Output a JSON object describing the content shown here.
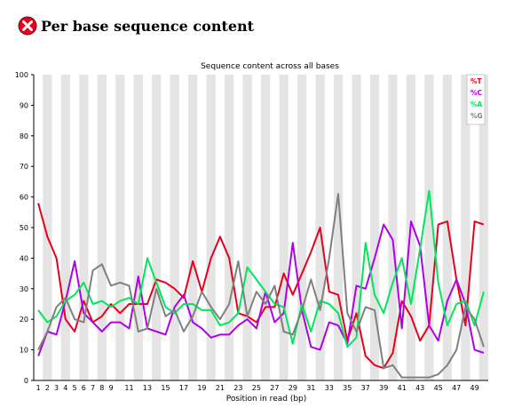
{
  "report": {
    "status_icon": "fail-cross-icon",
    "status_color": "#e8001c",
    "title": "Per base sequence content"
  },
  "chart_data": {
    "type": "line",
    "title": "Sequence content across all bases",
    "xlabel": "Position in read (bp)",
    "ylabel": "",
    "ylim": [
      0,
      100
    ],
    "yticks": [
      0,
      10,
      20,
      30,
      40,
      50,
      60,
      70,
      80,
      90,
      100
    ],
    "categories": [
      "1",
      "2",
      "3",
      "4",
      "5",
      "6",
      "7",
      "8",
      "9",
      "10",
      "11",
      "12",
      "13",
      "14",
      "15",
      "16",
      "17",
      "18",
      "19",
      "20",
      "21",
      "22",
      "23",
      "24",
      "25",
      "26",
      "27",
      "28",
      "29",
      "30",
      "31",
      "32",
      "33",
      "34",
      "35",
      "36",
      "37",
      "38",
      "39",
      "40",
      "41",
      "42",
      "43",
      "44",
      "45",
      "46",
      "47",
      "48",
      "49",
      "50"
    ],
    "xtick_labels": [
      "1",
      "2",
      "3",
      "4",
      "5",
      "6",
      "7",
      "8",
      "9",
      "11",
      "13",
      "15",
      "17",
      "19",
      "21",
      "23",
      "25",
      "27",
      "29",
      "31",
      "33",
      "35",
      "37",
      "39",
      "41",
      "43",
      "45",
      "47",
      "49"
    ],
    "xtick_positions": [
      1,
      2,
      3,
      4,
      5,
      6,
      7,
      8,
      9,
      11,
      13,
      15,
      17,
      19,
      21,
      23,
      25,
      27,
      29,
      31,
      33,
      35,
      37,
      39,
      41,
      43,
      45,
      47,
      49
    ],
    "grid": "alternating vertical bands",
    "legend_position": "top-right",
    "series": [
      {
        "name": "%T",
        "color": "#e8001c",
        "values": [
          58,
          47,
          40,
          20,
          16,
          26,
          19,
          21,
          25,
          22,
          25,
          25,
          25,
          33,
          32,
          30,
          27,
          39,
          29,
          40,
          47,
          40,
          22,
          21,
          19,
          24,
          24,
          35,
          28,
          35,
          42,
          50,
          29,
          28,
          13,
          22,
          8,
          5,
          4,
          9,
          26,
          21,
          13,
          18,
          51,
          52,
          33,
          18,
          52,
          51
        ]
      },
      {
        "name": "%C",
        "color": "#b000e8",
        "values": [
          8,
          16,
          15,
          26,
          39,
          22,
          19,
          16,
          19,
          19,
          17,
          34,
          17,
          16,
          15,
          24,
          28,
          19,
          17,
          14,
          15,
          15,
          18,
          20,
          17,
          29,
          19,
          22,
          45,
          23,
          11,
          10,
          19,
          18,
          12,
          31,
          30,
          40,
          51,
          46,
          17,
          52,
          44,
          18,
          13,
          26,
          33,
          25,
          10,
          9
        ]
      },
      {
        "name": "%A",
        "color": "#00e858",
        "values": [
          23,
          19,
          21,
          26,
          28,
          32,
          25,
          26,
          24,
          26,
          27,
          25,
          40,
          32,
          24,
          22,
          25,
          25,
          23,
          23,
          18,
          19,
          22,
          37,
          33,
          29,
          25,
          24,
          12,
          25,
          16,
          26,
          25,
          22,
          11,
          14,
          45,
          28,
          22,
          32,
          40,
          25,
          43,
          62,
          32,
          18,
          25,
          26,
          18,
          29
        ]
      },
      {
        "name": "%G",
        "color": "#808080",
        "values": [
          10,
          16,
          24,
          27,
          20,
          19,
          36,
          38,
          31,
          32,
          31,
          16,
          17,
          30,
          21,
          23,
          16,
          21,
          29,
          24,
          20,
          25,
          39,
          21,
          29,
          25,
          31,
          16,
          15,
          23,
          33,
          23,
          40,
          61,
          22,
          16,
          24,
          23,
          4,
          5,
          1,
          1,
          1,
          1,
          2,
          5,
          10,
          24,
          20,
          11
        ]
      }
    ]
  }
}
